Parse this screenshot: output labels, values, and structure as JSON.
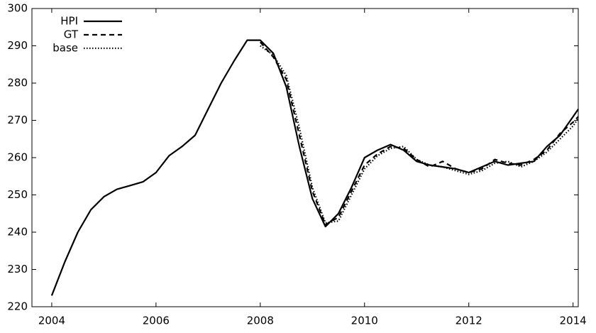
{
  "chart_data": {
    "type": "line",
    "x": [
      2004,
      2004.25,
      2004.5,
      2004.75,
      2005,
      2005.25,
      2005.5,
      2005.75,
      2006,
      2006.25,
      2006.5,
      2006.75,
      2007,
      2007.25,
      2007.5,
      2007.75,
      2008,
      2008.25,
      2008.5,
      2008.75,
      2009,
      2009.25,
      2009.5,
      2009.75,
      2010,
      2010.25,
      2010.5,
      2010.75,
      2011,
      2011.25,
      2011.5,
      2011.75,
      2012,
      2012.25,
      2012.5,
      2012.75,
      2013,
      2013.25,
      2013.5,
      2013.75,
      2014,
      2014.1
    ],
    "series": [
      {
        "name": "HPI",
        "color": "#000000",
        "style": "solid",
        "values": [
          223,
          232,
          240,
          246,
          249.5,
          251.5,
          252.5,
          253.5,
          256,
          260.5,
          263,
          266,
          273,
          280,
          286,
          291.5,
          291.5,
          288,
          279,
          263,
          249,
          241.5,
          245,
          252,
          260,
          262,
          263.5,
          262,
          259,
          258,
          257.5,
          257,
          256,
          257.5,
          259,
          258,
          258.5,
          259,
          263,
          266,
          271,
          273
        ]
      },
      {
        "name": "GT",
        "color": "#000000",
        "style": "dashed",
        "values": [
          null,
          null,
          null,
          null,
          null,
          null,
          null,
          null,
          null,
          null,
          null,
          null,
          null,
          null,
          null,
          null,
          291,
          287,
          281,
          266,
          251,
          242,
          244,
          251,
          258,
          261,
          263,
          262.5,
          259.5,
          257.5,
          259,
          257,
          256,
          257,
          259.5,
          258.5,
          258,
          259.5,
          262,
          266.5,
          269.5,
          271
        ]
      },
      {
        "name": "base",
        "color": "#000000",
        "style": "dotted",
        "values": [
          null,
          null,
          null,
          null,
          null,
          null,
          null,
          null,
          null,
          null,
          null,
          null,
          null,
          null,
          null,
          null,
          290,
          287.5,
          282,
          268,
          252,
          242.5,
          243,
          250,
          257,
          260.5,
          262.5,
          263,
          259.5,
          258,
          257.5,
          256.5,
          255.5,
          256.5,
          258.5,
          259,
          257.5,
          259,
          261.5,
          265,
          268.5,
          270.5
        ]
      }
    ],
    "xlim": [
      2003.62,
      2014.1
    ],
    "xticks": [
      2004,
      2006,
      2008,
      2010,
      2012,
      2014
    ],
    "ylim": [
      220,
      300
    ],
    "yticks": [
      220,
      230,
      240,
      250,
      260,
      270,
      280,
      290,
      300
    ],
    "legend": "top-left"
  }
}
